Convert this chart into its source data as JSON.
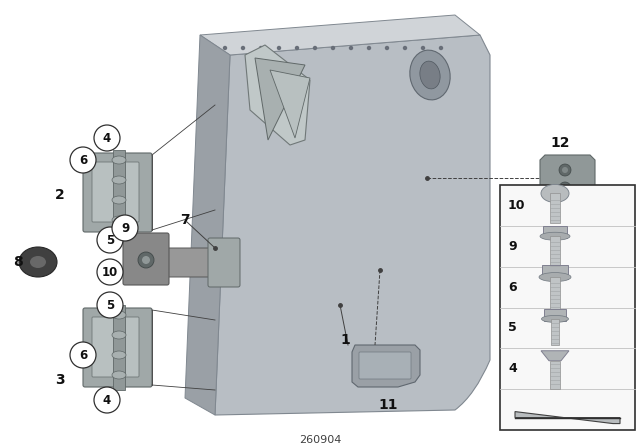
{
  "background_color": "#ffffff",
  "diagram_number": "260904",
  "door_face_color": "#b8bec4",
  "door_top_color": "#d0d4d8",
  "door_left_color": "#9aa0a6",
  "hinge_color": "#909898",
  "hinge_light": "#c0c8c8",
  "part11_color": "#9aa0a6",
  "part12_color": "#909898",
  "screw_color": "#b0b4b8",
  "panel_bg": "#f8f8f8",
  "line_color": "#404040",
  "circle_color": "#202020"
}
